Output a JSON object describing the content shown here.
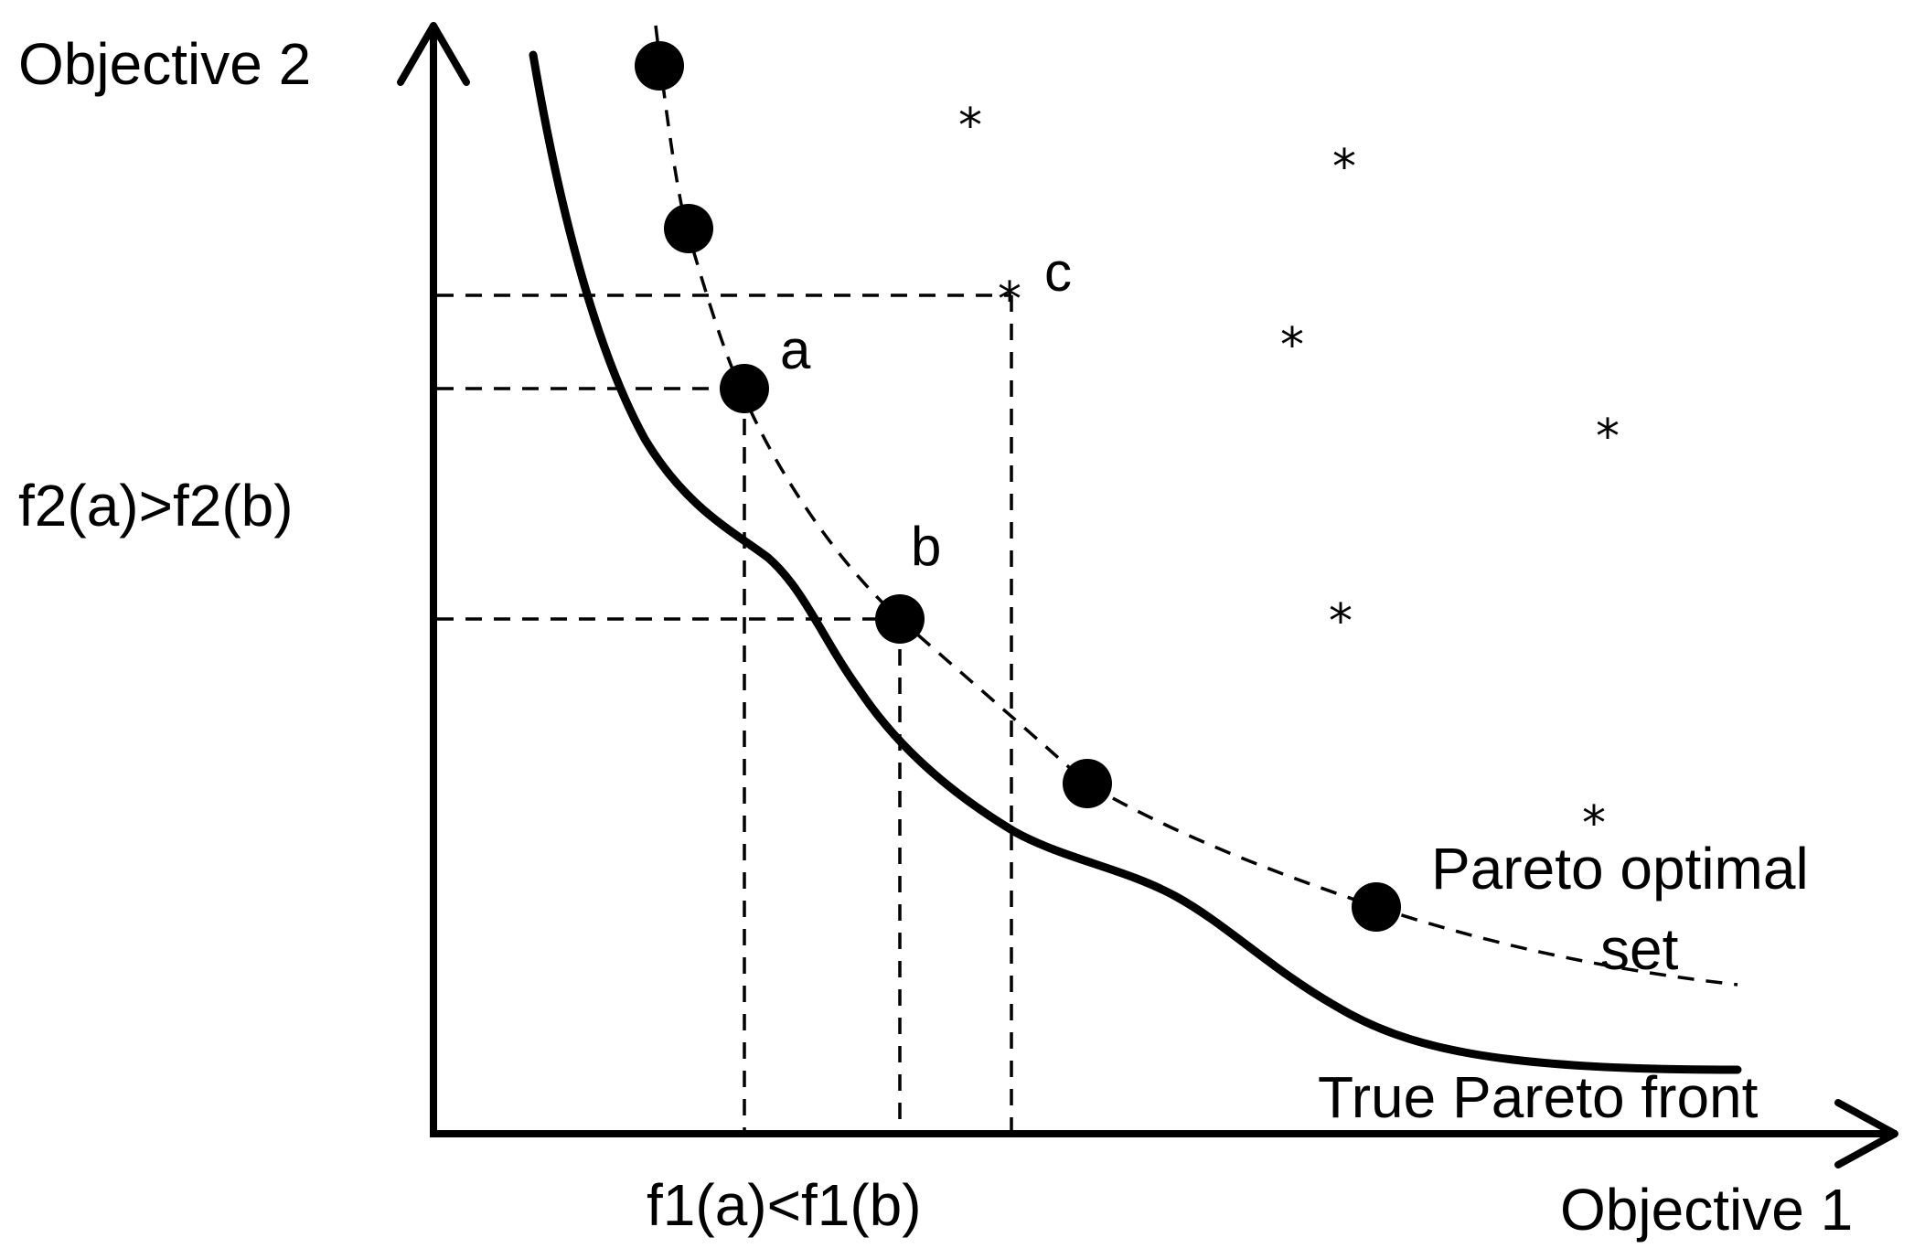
{
  "labels": {
    "y_axis": "Objective 2",
    "x_axis": "Objective 1",
    "f2_compare": "f2(a)>f2(b)",
    "f1_compare": "f1(a)<f1(b)",
    "point_a": "a",
    "point_b": "b",
    "point_c": "c",
    "pareto_set_line1": "Pareto optimal",
    "pareto_set_line2": "set",
    "true_front": "True Pareto front",
    "star_symbol": "*"
  },
  "colors": {
    "ink": "#000000",
    "background": "#ffffff"
  }
}
